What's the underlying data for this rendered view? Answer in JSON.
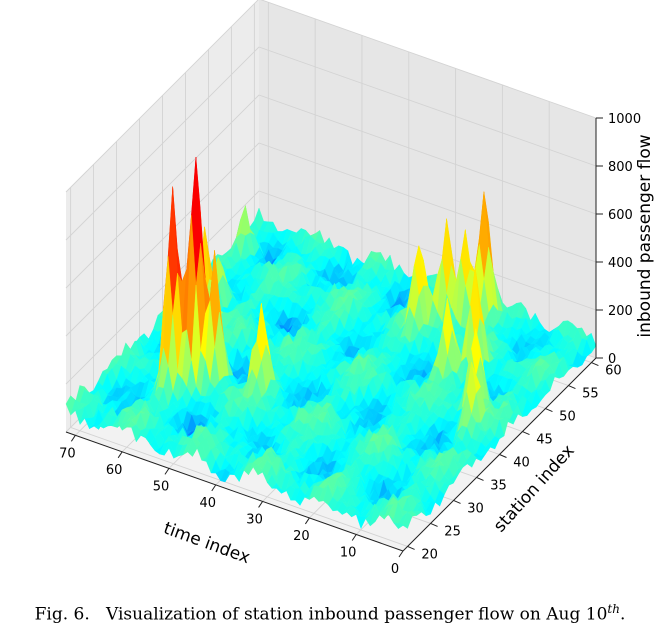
{
  "chart_data": {
    "type": "surface3d",
    "colormap": "rainbow",
    "x_axis": {
      "label": "time index",
      "ticks": [
        0,
        10,
        20,
        30,
        40,
        50,
        60,
        70
      ],
      "range": [
        0,
        72
      ]
    },
    "y_axis": {
      "label": "station index",
      "ticks": [
        20,
        25,
        30,
        35,
        40,
        45,
        50,
        55,
        60
      ],
      "range": [
        19,
        61
      ]
    },
    "z_axis": {
      "label": "inbound passenger flow",
      "ticks": [
        0,
        200,
        400,
        600,
        800,
        1000
      ],
      "range": [
        0,
        1000
      ]
    },
    "grid": true,
    "peaks": [
      {
        "time": 57,
        "station": 32,
        "value": 980
      },
      {
        "time": 60,
        "station": 30,
        "value": 760
      },
      {
        "time": 54,
        "station": 33,
        "value": 520
      },
      {
        "time": 63,
        "station": 40,
        "value": 420
      },
      {
        "time": 21,
        "station": 58,
        "value": 560
      },
      {
        "time": 24,
        "station": 57,
        "value": 430
      },
      {
        "time": 27,
        "station": 56,
        "value": 450
      },
      {
        "time": 15,
        "station": 50,
        "value": 380
      },
      {
        "time": 9,
        "station": 44,
        "value": 330
      },
      {
        "time": 6,
        "station": 40,
        "value": 250
      },
      {
        "time": 18,
        "station": 47,
        "value": 300
      },
      {
        "time": 30,
        "station": 53,
        "value": 320
      },
      {
        "time": 45,
        "station": 34,
        "value": 320
      },
      {
        "time": 66,
        "station": 46,
        "value": 250
      },
      {
        "time": 70,
        "station": 56,
        "value": 160
      }
    ]
  },
  "caption": {
    "prefix": "Fig. 6.",
    "text": "Visualization of station inbound passenger flow on Aug 10",
    "superscript": "th",
    "suffix": "."
  }
}
